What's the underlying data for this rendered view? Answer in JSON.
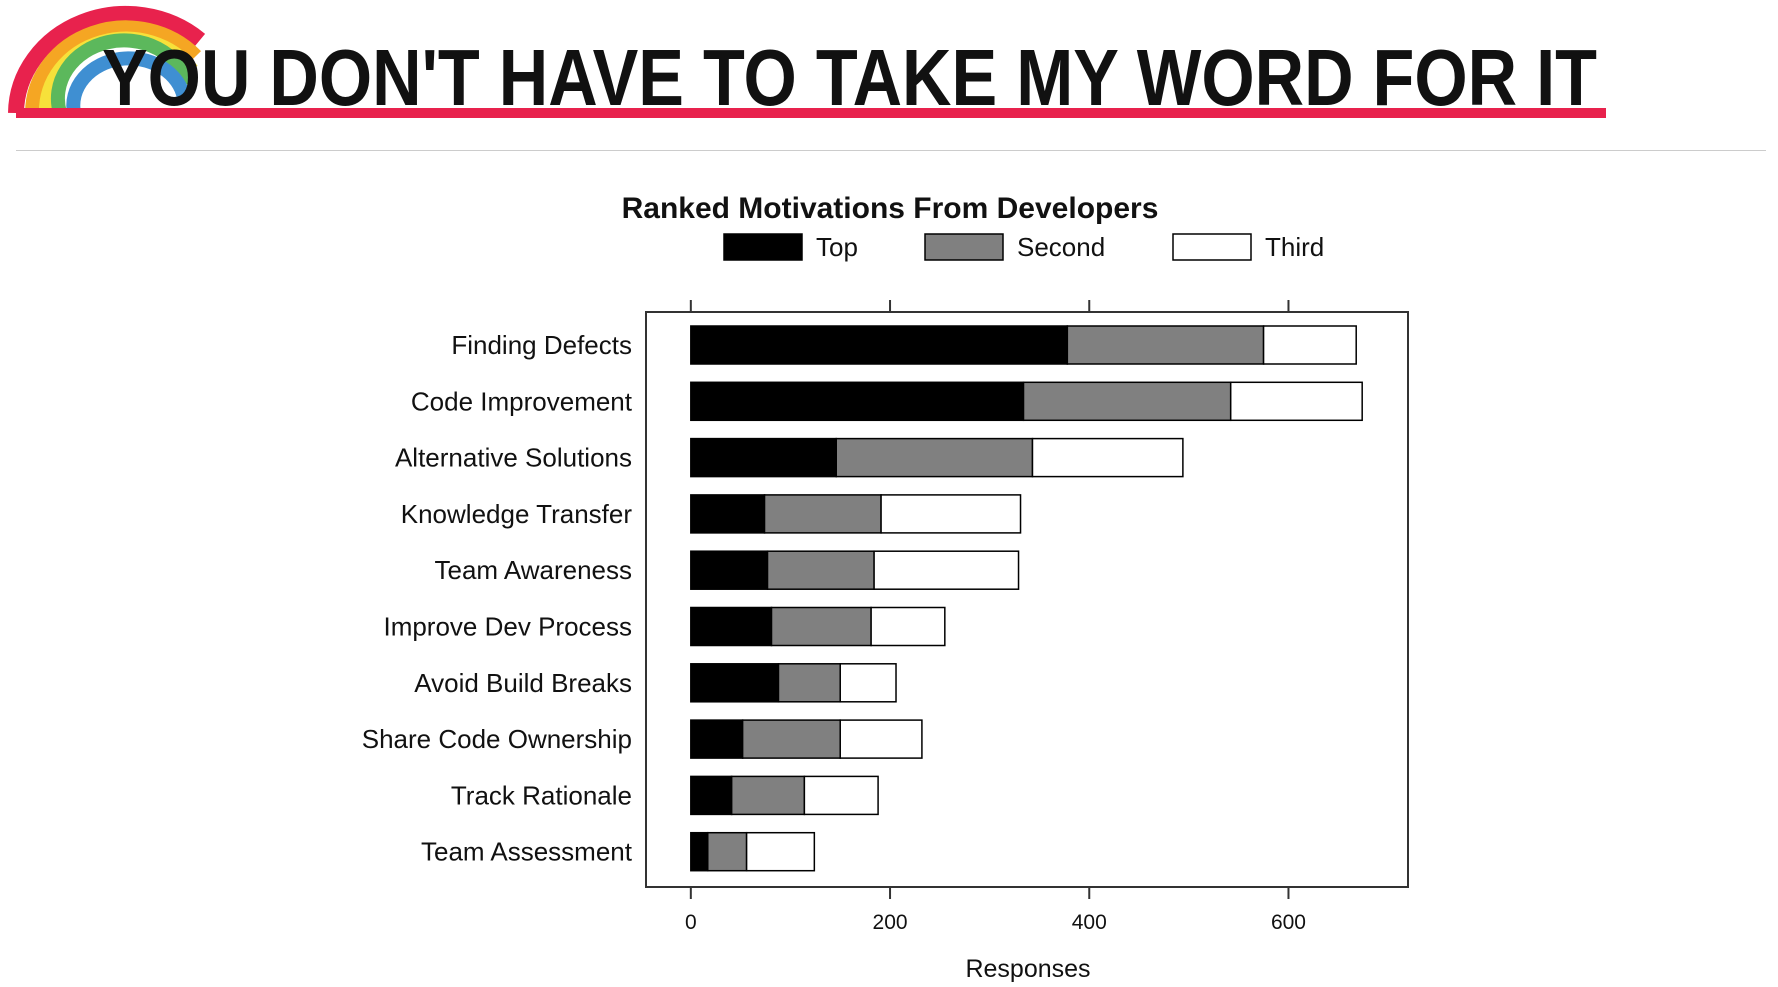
{
  "banner": {
    "headline": "YOU DON'T HAVE TO TAKE MY WORD FOR IT",
    "rainbow_colors": [
      "#e8224d",
      "#f5a623",
      "#f7e13a",
      "#5cb85c",
      "#3f8fd2"
    ],
    "underline_color": "#e8224d"
  },
  "chart_data": {
    "type": "bar",
    "orientation": "horizontal",
    "stacked": true,
    "title": "Ranked Motivations From Developers",
    "xlabel": "Responses",
    "ylabel": "",
    "xlim": [
      -45,
      720
    ],
    "xticks": [
      0,
      200,
      400,
      600
    ],
    "xtick_labels": [
      "0",
      "200",
      "400",
      "600"
    ],
    "legend_position": "top",
    "categories": [
      "Finding Defects",
      "Code Improvement",
      "Alternative Solutions",
      "Knowledge Transfer",
      "Team Awareness",
      "Improve Dev Process",
      "Avoid Build Breaks",
      "Share Code Ownership",
      "Track Rationale",
      "Team Assessment"
    ],
    "series": [
      {
        "name": "Top",
        "color": "#000000",
        "values": [
          378,
          334,
          146,
          74,
          77,
          81,
          88,
          52,
          41,
          17
        ]
      },
      {
        "name": "Second",
        "color": "#808080",
        "values": [
          197,
          208,
          197,
          117,
          107,
          100,
          62,
          98,
          73,
          39
        ]
      },
      {
        "name": "Third",
        "color": "#ffffff",
        "values": [
          93,
          132,
          151,
          140,
          145,
          74,
          56,
          82,
          74,
          68
        ]
      }
    ]
  }
}
